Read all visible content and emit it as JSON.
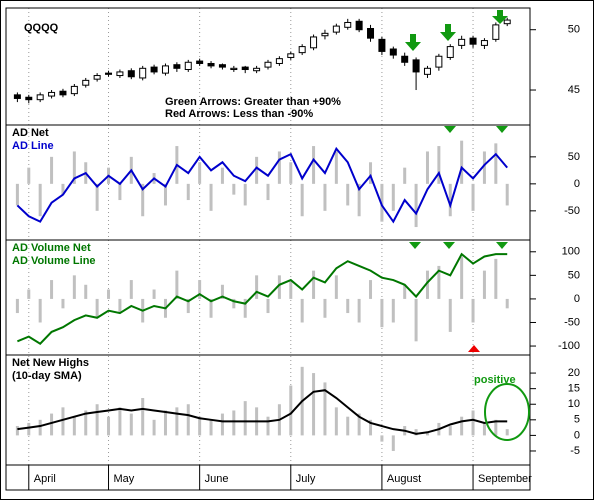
{
  "chart_data": [
    {
      "type": "candlestick",
      "title": "QQQQ",
      "annotations": [
        "Green Arrows: Greater than +90%",
        "Red Arrows: Less than -90%"
      ],
      "open": [
        44.6,
        44.4,
        44.2,
        44.5,
        44.9,
        44.7,
        45.4,
        45.9,
        46.4,
        46.2,
        46.6,
        46.0,
        46.9,
        46.4,
        47.1,
        46.7,
        47.4,
        47.2,
        47.1,
        46.7,
        46.9,
        46.6,
        46.9,
        47.2,
        47.7,
        48.1,
        48.5,
        49.5,
        49.8,
        50.2,
        50.7,
        50.1,
        49.2,
        48.4,
        47.8,
        47.5,
        46.3,
        46.9,
        47.7,
        48.7,
        49.3,
        48.7,
        49.2,
        50.5
      ],
      "high": [
        44.8,
        44.6,
        44.8,
        45.0,
        45.1,
        45.5,
        46.0,
        46.4,
        46.6,
        46.7,
        46.8,
        47.0,
        47.1,
        47.2,
        47.3,
        47.5,
        47.6,
        47.4,
        47.2,
        47.0,
        47.0,
        47.0,
        47.5,
        47.8,
        48.2,
        48.8,
        49.6,
        50.0,
        50.5,
        50.9,
        50.9,
        50.4,
        49.4,
        48.6,
        48.1,
        47.7,
        47.0,
        48.0,
        48.8,
        49.5,
        49.5,
        49.3,
        50.6,
        51.0
      ],
      "low": [
        44.0,
        43.9,
        44.0,
        44.3,
        44.4,
        44.5,
        45.2,
        45.7,
        46.1,
        46.0,
        45.9,
        45.8,
        46.3,
        46.2,
        46.5,
        46.5,
        47.0,
        46.8,
        46.7,
        46.5,
        46.4,
        46.4,
        46.7,
        47.0,
        47.5,
        47.9,
        48.3,
        49.2,
        49.6,
        50.0,
        49.8,
        49.0,
        47.9,
        47.6,
        47.0,
        45.0,
        46.0,
        46.6,
        47.5,
        48.4,
        48.5,
        48.4,
        49.0,
        50.3
      ],
      "close": [
        44.3,
        44.2,
        44.6,
        44.8,
        44.6,
        45.3,
        45.8,
        46.2,
        46.3,
        46.5,
        46.1,
        46.8,
        46.5,
        47.0,
        46.8,
        47.3,
        47.2,
        47.0,
        46.9,
        46.8,
        46.7,
        46.8,
        47.3,
        47.6,
        48.0,
        48.6,
        49.4,
        49.7,
        50.3,
        50.6,
        50.0,
        49.3,
        48.2,
        47.9,
        47.3,
        46.5,
        46.8,
        47.8,
        48.6,
        49.2,
        48.8,
        49.1,
        50.4,
        50.8
      ],
      "ylim": [
        42.1,
        51.8
      ],
      "yticks": [
        45,
        50
      ],
      "xlim": [
        -1,
        45
      ]
    },
    {
      "type": "bar_line",
      "series": [
        {
          "name": "AD Net",
          "kind": "bar",
          "color": "#c0c0c0",
          "label_color": "#000000",
          "values": [
            -40,
            30,
            -60,
            50,
            -20,
            60,
            40,
            -50,
            30,
            -30,
            50,
            -60,
            20,
            -40,
            70,
            -30,
            40,
            -50,
            30,
            -20,
            -40,
            50,
            -30,
            60,
            40,
            -60,
            70,
            -50,
            60,
            -40,
            -60,
            40,
            -70,
            -50,
            30,
            -80,
            60,
            70,
            -60,
            80,
            -50,
            60,
            75,
            -40
          ]
        },
        {
          "name": "AD Line",
          "kind": "line",
          "color": "#0000cc",
          "label_color": "#0000cc",
          "values": [
            -40,
            -60,
            -70,
            -35,
            -20,
            10,
            20,
            -5,
            15,
            0,
            25,
            -10,
            10,
            -5,
            35,
            20,
            50,
            25,
            40,
            15,
            5,
            30,
            15,
            45,
            55,
            10,
            45,
            20,
            65,
            40,
            -10,
            15,
            -40,
            -70,
            -30,
            -55,
            -10,
            20,
            -40,
            30,
            10,
            35,
            55,
            30
          ]
        }
      ],
      "ylim": [
        -104,
        109
      ],
      "yticks": [
        -50,
        0,
        50
      ],
      "xlim": [
        -1,
        45
      ]
    },
    {
      "type": "bar_line",
      "series": [
        {
          "name": "AD Volume Net",
          "kind": "bar",
          "color": "#c0c0c0",
          "label_color": "#007700",
          "values": [
            -30,
            20,
            -50,
            40,
            -20,
            50,
            30,
            -40,
            20,
            -30,
            40,
            -50,
            20,
            -40,
            60,
            -30,
            40,
            -40,
            30,
            -20,
            -40,
            50,
            -30,
            50,
            40,
            -50,
            60,
            -40,
            50,
            -30,
            -50,
            40,
            -60,
            -50,
            30,
            -90,
            60,
            70,
            -70,
            90,
            -50,
            60,
            85,
            -20
          ]
        },
        {
          "name": "AD Volume Line",
          "kind": "line",
          "color": "#007700",
          "label_color": "#007700",
          "values": [
            -90,
            -80,
            -95,
            -70,
            -60,
            -45,
            -35,
            -40,
            -25,
            -30,
            -15,
            -25,
            -15,
            -20,
            5,
            -5,
            10,
            -5,
            5,
            -5,
            -10,
            15,
            5,
            30,
            40,
            20,
            45,
            35,
            65,
            80,
            70,
            60,
            45,
            40,
            30,
            5,
            35,
            60,
            50,
            95,
            75,
            90,
            95,
            95
          ]
        }
      ],
      "ylim": [
        -119,
        125
      ],
      "yticks": [
        -100,
        -50,
        0,
        50,
        100
      ],
      "xlim": [
        -1,
        45
      ]
    },
    {
      "type": "bar_line",
      "annotations": [
        "positive"
      ],
      "series": [
        {
          "name": "Net New Highs",
          "kind": "bar",
          "color": "#c0c0c0",
          "label_color": "#000000",
          "values": [
            3,
            4,
            5,
            7,
            9,
            6,
            8,
            10,
            6,
            9,
            7,
            12,
            5,
            8,
            9,
            10,
            6,
            5,
            7,
            8,
            11,
            9,
            6,
            10,
            16,
            22,
            20,
            17,
            9,
            6,
            7,
            5,
            -2,
            -5,
            3,
            2,
            1,
            4,
            3,
            6,
            8,
            4,
            5,
            2
          ]
        },
        {
          "name": "(10-day SMA)",
          "kind": "line",
          "color": "#000000",
          "label_color": "#000000",
          "values": [
            2,
            2.5,
            3,
            4,
            5,
            6,
            7,
            7.5,
            8,
            8.5,
            8,
            8.5,
            8,
            7.5,
            7,
            6.5,
            5.5,
            5,
            4.5,
            4.5,
            4.5,
            4.5,
            4.5,
            5,
            7,
            11,
            14,
            14.5,
            12,
            9,
            6,
            4,
            3,
            2,
            1.5,
            0.5,
            1,
            2,
            3.5,
            4.5,
            5,
            4,
            4.5,
            4.5
          ]
        }
      ],
      "ylim": [
        -9.5,
        25.8
      ],
      "yticks": [
        -5,
        0,
        5,
        10,
        15,
        20
      ],
      "xlim": [
        -1,
        45
      ],
      "xticks": [
        {
          "value": 1,
          "label": "April"
        },
        {
          "value": 8,
          "label": "May"
        },
        {
          "value": 16,
          "label": "June"
        },
        {
          "value": 24,
          "label": "July"
        },
        {
          "value": 32,
          "label": "August"
        },
        {
          "value": 40,
          "label": "September"
        }
      ]
    }
  ]
}
